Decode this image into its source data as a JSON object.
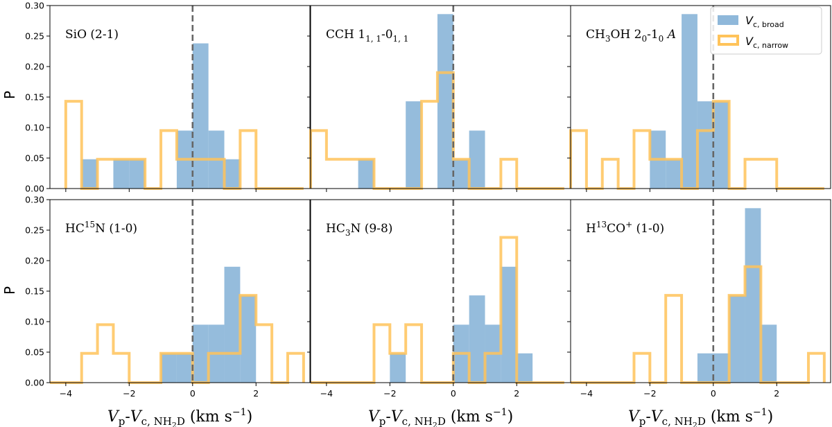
{
  "colors": {
    "broad": "#8fb8da",
    "narrow": "#ffc35a",
    "zero_line": "#666666"
  },
  "axes_text": {
    "ylabel": "P",
    "xlabel_main": "V",
    "xlabel_sub_p": "p",
    "xlabel_dash": "-",
    "xlabel_sub_c": "c, NH",
    "xlabel_sub_2": "2",
    "xlabel_sub_D": "D",
    "xlabel_units": " (km s",
    "xlabel_exp": "−1",
    "xlabel_close": ")"
  },
  "legend": {
    "broad": {
      "main": "V",
      "sub": "c, broad"
    },
    "narrow": {
      "main": "V",
      "sub": "c, narrow"
    }
  },
  "chart_data": [
    {
      "type": "bar",
      "name": "sio",
      "title_parts": [
        {
          "t": "SiO (2-1)"
        }
      ],
      "xlim": [
        -4.5,
        3.7
      ],
      "ylim": [
        0,
        0.3
      ],
      "xticks": [
        -4,
        -2,
        0,
        2
      ],
      "yticks": [
        0.0,
        0.05,
        0.1,
        0.15,
        0.2,
        0.25,
        0.3
      ],
      "bin_edges": [
        -4.0,
        -3.5,
        -3.0,
        -2.5,
        -2.0,
        -1.5,
        -1.0,
        -0.5,
        0.0,
        0.5,
        1.0,
        1.5,
        2.0,
        2.5,
        3.0,
        3.5
      ],
      "broad": [
        0,
        0.048,
        0,
        0.048,
        0.048,
        0,
        0,
        0.095,
        0.238,
        0.095,
        0.048,
        0,
        0,
        0,
        0
      ],
      "narrow": [
        0.143,
        0,
        0.048,
        0.048,
        0.048,
        0,
        0.095,
        0.048,
        0.048,
        0.048,
        0,
        0.095,
        0,
        0,
        0
      ]
    },
    {
      "type": "bar",
      "name": "cch",
      "title_parts": [
        {
          "t": "CCH 1"
        },
        {
          "t": "1, 1",
          "sub": true
        },
        {
          "t": "-0"
        },
        {
          "t": "1, 1",
          "sub": true
        }
      ],
      "xlim": [
        -4.5,
        3.7
      ],
      "ylim": [
        0,
        0.3
      ],
      "xticks": [
        -4,
        -2,
        0,
        2
      ],
      "yticks": [
        0.0,
        0.05,
        0.1,
        0.15,
        0.2,
        0.25,
        0.3
      ],
      "bin_edges": [
        -4.5,
        -4.0,
        -3.5,
        -3.0,
        -2.5,
        -2.0,
        -1.5,
        -1.0,
        -0.5,
        0.0,
        0.5,
        1.0,
        1.5,
        2.0,
        2.5,
        3.0,
        3.5
      ],
      "broad": [
        0,
        0,
        0,
        0.048,
        0,
        0,
        0.143,
        0,
        0.286,
        0.048,
        0.095,
        0,
        0,
        0,
        0,
        0
      ],
      "narrow": [
        0.095,
        0.048,
        0.048,
        0.048,
        0,
        0,
        0,
        0.143,
        0.19,
        0.048,
        0,
        0,
        0.048,
        0,
        0,
        0
      ]
    },
    {
      "type": "bar",
      "name": "ch3oh",
      "title_parts": [
        {
          "t": "CH"
        },
        {
          "t": "3",
          "sub": true
        },
        {
          "t": "OH 2"
        },
        {
          "t": "0",
          "sub": true
        },
        {
          "t": "-1"
        },
        {
          "t": "0",
          "sub": true
        },
        {
          "t": " A",
          "italic": true
        }
      ],
      "xlim": [
        -4.5,
        3.7
      ],
      "ylim": [
        0,
        0.3
      ],
      "xticks": [
        -4,
        -2,
        0,
        2
      ],
      "yticks": [
        0.0,
        0.05,
        0.1,
        0.15,
        0.2,
        0.25,
        0.3
      ],
      "bin_edges": [
        -4.5,
        -4.0,
        -3.5,
        -3.0,
        -2.5,
        -2.0,
        -1.5,
        -1.0,
        -0.5,
        0.0,
        0.5,
        1.0,
        1.5,
        2.0,
        2.5,
        3.0,
        3.5
      ],
      "broad": [
        0,
        0,
        0,
        0,
        0,
        0.095,
        0.048,
        0.286,
        0.143,
        0.143,
        0,
        0,
        0,
        0,
        0,
        0
      ],
      "narrow": [
        0.095,
        0,
        0.048,
        0,
        0.095,
        0.048,
        0.048,
        0,
        0.095,
        0.143,
        0,
        0.048,
        0.048,
        0,
        0,
        0
      ]
    },
    {
      "type": "bar",
      "name": "hc15n",
      "title_parts": [
        {
          "t": "HC"
        },
        {
          "t": "15",
          "sup": true
        },
        {
          "t": "N (1-0)"
        }
      ],
      "xlim": [
        -4.5,
        3.7
      ],
      "ylim": [
        0,
        0.3
      ],
      "xticks": [
        -4,
        -2,
        0,
        2
      ],
      "yticks": [
        0.0,
        0.05,
        0.1,
        0.15,
        0.2,
        0.25,
        0.3
      ],
      "bin_edges": [
        -4.5,
        -4.0,
        -3.5,
        -3.0,
        -2.5,
        -2.0,
        -1.5,
        -1.0,
        -0.5,
        0.0,
        0.5,
        1.0,
        1.5,
        2.0,
        2.5,
        3.0,
        3.5
      ],
      "broad": [
        0,
        0,
        0,
        0,
        0,
        0,
        0,
        0.048,
        0.048,
        0.095,
        0.095,
        0.19,
        0.143,
        0,
        0,
        0
      ],
      "narrow": [
        0,
        0,
        0.048,
        0.095,
        0.048,
        0,
        0,
        0.048,
        0.048,
        0,
        0.048,
        0.048,
        0.143,
        0.095,
        0,
        0.048
      ]
    },
    {
      "type": "bar",
      "name": "hc3n",
      "title_parts": [
        {
          "t": "HC"
        },
        {
          "t": "3",
          "sub": true
        },
        {
          "t": "N (9-8)"
        }
      ],
      "xlim": [
        -4.5,
        3.7
      ],
      "ylim": [
        0,
        0.3
      ],
      "xticks": [
        -4,
        -2,
        0,
        2
      ],
      "yticks": [
        0.0,
        0.05,
        0.1,
        0.15,
        0.2,
        0.25,
        0.3
      ],
      "bin_edges": [
        -4.5,
        -4.0,
        -3.5,
        -3.0,
        -2.5,
        -2.0,
        -1.5,
        -1.0,
        -0.5,
        0.0,
        0.5,
        1.0,
        1.5,
        2.0,
        2.5,
        3.0,
        3.5
      ],
      "broad": [
        0,
        0,
        0,
        0,
        0,
        0.048,
        0,
        0,
        0,
        0.095,
        0.143,
        0.095,
        0.19,
        0.048,
        0,
        0
      ],
      "narrow": [
        0,
        0,
        0,
        0,
        0.095,
        0.048,
        0.095,
        0,
        0,
        0.048,
        0,
        0.048,
        0.238,
        0,
        0,
        0
      ]
    },
    {
      "type": "bar",
      "name": "h13co",
      "title_parts": [
        {
          "t": "H"
        },
        {
          "t": "13",
          "sup": true
        },
        {
          "t": "CO"
        },
        {
          "t": "+",
          "sup": true
        },
        {
          "t": " (1-0)"
        }
      ],
      "xlim": [
        -4.5,
        3.7
      ],
      "ylim": [
        0,
        0.3
      ],
      "xticks": [
        -4,
        -2,
        0,
        2
      ],
      "yticks": [
        0.0,
        0.05,
        0.1,
        0.15,
        0.2,
        0.25,
        0.3
      ],
      "bin_edges": [
        -4.5,
        -4.0,
        -3.5,
        -3.0,
        -2.5,
        -2.0,
        -1.5,
        -1.0,
        -0.5,
        0.0,
        0.5,
        1.0,
        1.5,
        2.0,
        2.5,
        3.0,
        3.5
      ],
      "broad": [
        0,
        0,
        0,
        0,
        0,
        0,
        0,
        0,
        0.048,
        0.048,
        0.143,
        0.286,
        0.095,
        0,
        0,
        0
      ],
      "narrow": [
        0,
        0,
        0,
        0,
        0.048,
        0,
        0.143,
        0,
        0,
        0,
        0.143,
        0.19,
        0,
        0,
        0,
        0.048
      ]
    }
  ]
}
